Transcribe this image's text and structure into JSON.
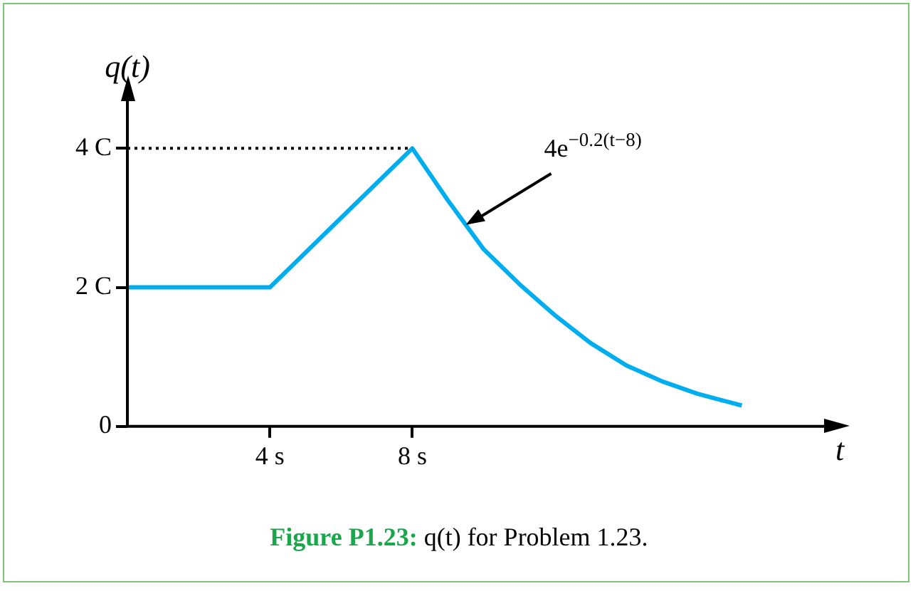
{
  "chart_data": {
    "type": "line",
    "xlabel": "t",
    "ylabel": "q(t)",
    "x": [
      0,
      4,
      8,
      9,
      10,
      11,
      12,
      13,
      14,
      15,
      16,
      17.25
    ],
    "series": [
      {
        "color": "#00aeef",
        "values": [
          2,
          2,
          4,
          3.25,
          2.55,
          2.05,
          1.6,
          1.2,
          0.88,
          0.65,
          0.47,
          0.3
        ]
      }
    ],
    "xlim": [
      0,
      19.6
    ],
    "ylim": [
      0,
      4.7
    ],
    "xticks": [
      {
        "value": 4,
        "label": "4 s"
      },
      {
        "value": 8,
        "label": "8 s"
      }
    ],
    "yticks": [
      0,
      {
        "value": 2,
        "label": "2 C"
      },
      {
        "value": 4,
        "label": "4 C"
      }
    ],
    "ref_lines": [
      {
        "axis": "y",
        "value": 4,
        "color": "#000000",
        "line_style": "dotted"
      }
    ],
    "annotations": [
      {
        "text": "4e$^{−0.2(t−8)}$",
        "x": 9.5,
        "y": 2.9
      },
      "Figure P1.23: q(t) for Problem 1.23."
    ],
    "grid": false,
    "legend": false,
    "marker": "none",
    "line_style": "solid"
  }
}
